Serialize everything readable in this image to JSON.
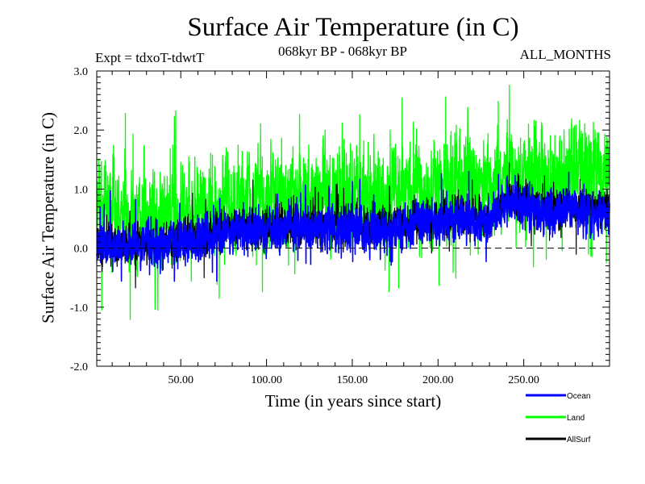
{
  "chart_data": {
    "type": "line",
    "title": "Surface Air Temperature (in C)",
    "subtitle_left": "Expt = tdxoT-tdwtT",
    "subtitle_center": "068kyr BP - 068kyr BP",
    "subtitle_right": "ALL_MONTHS",
    "xlabel": "Time (in years since start)",
    "ylabel": "Surface Air Temperature (in C)",
    "xlim": [
      1,
      300
    ],
    "ylim": [
      -2.0,
      3.0
    ],
    "x_ticks": [
      50,
      100,
      150,
      200,
      250
    ],
    "x_tick_labels": [
      "50.00",
      "100.00",
      "150.00",
      "200.00",
      "250.00"
    ],
    "y_ticks": [
      -2.0,
      -1.0,
      0.0,
      1.0,
      2.0,
      3.0
    ],
    "y_tick_labels": [
      "-2.0",
      "-1.0",
      "0.0",
      "1.0",
      "2.0",
      "3.0"
    ],
    "reference_line": {
      "y": 0.0,
      "style": "dashed"
    },
    "legend_position": "bottom-right, outside plot",
    "series": [
      {
        "name": "Land",
        "color": "#00ff00",
        "x": [
          1,
          10,
          20,
          30,
          40,
          50,
          60,
          70,
          80,
          90,
          100,
          110,
          120,
          130,
          140,
          150,
          160,
          170,
          180,
          190,
          200,
          210,
          220,
          230,
          240,
          250,
          260,
          270,
          280,
          290,
          300
        ],
        "y": [
          0.8,
          0.75,
          0.6,
          0.55,
          0.55,
          0.6,
          0.65,
          0.7,
          0.75,
          0.8,
          0.8,
          0.85,
          0.8,
          0.85,
          0.9,
          0.9,
          0.85,
          0.9,
          0.9,
          0.95,
          1.0,
          1.05,
          1.05,
          1.0,
          1.2,
          1.25,
          1.15,
          1.15,
          1.2,
          1.25,
          1.25
        ],
        "range_min": -1.35,
        "range_max": 2.8
      },
      {
        "name": "Ocean",
        "color": "#0000ff",
        "x": [
          1,
          10,
          20,
          30,
          40,
          50,
          60,
          70,
          80,
          90,
          100,
          110,
          120,
          130,
          140,
          150,
          160,
          170,
          180,
          190,
          200,
          210,
          220,
          230,
          240,
          250,
          260,
          270,
          280,
          290,
          300
        ],
        "y": [
          0.0,
          0.05,
          0.0,
          0.05,
          0.05,
          0.1,
          0.15,
          0.25,
          0.3,
          0.3,
          0.3,
          0.35,
          0.35,
          0.35,
          0.35,
          0.35,
          0.3,
          0.3,
          0.35,
          0.4,
          0.45,
          0.5,
          0.5,
          0.45,
          0.75,
          0.75,
          0.6,
          0.6,
          0.65,
          0.6,
          0.6
        ],
        "range_min": -0.6,
        "range_max": 1.3
      },
      {
        "name": "AllSurf",
        "color": "#000000",
        "x": [
          1,
          10,
          20,
          30,
          40,
          50,
          60,
          70,
          80,
          90,
          100,
          110,
          120,
          130,
          140,
          150,
          160,
          170,
          180,
          190,
          200,
          210,
          220,
          230,
          240,
          250,
          260,
          270,
          280,
          290,
          300
        ],
        "y": [
          0.05,
          0.1,
          0.05,
          0.1,
          0.1,
          0.15,
          0.2,
          0.3,
          0.35,
          0.35,
          0.35,
          0.4,
          0.4,
          0.4,
          0.4,
          0.4,
          0.35,
          0.35,
          0.4,
          0.45,
          0.5,
          0.55,
          0.55,
          0.5,
          0.8,
          0.8,
          0.65,
          0.65,
          0.7,
          0.65,
          0.65
        ]
      }
    ]
  }
}
